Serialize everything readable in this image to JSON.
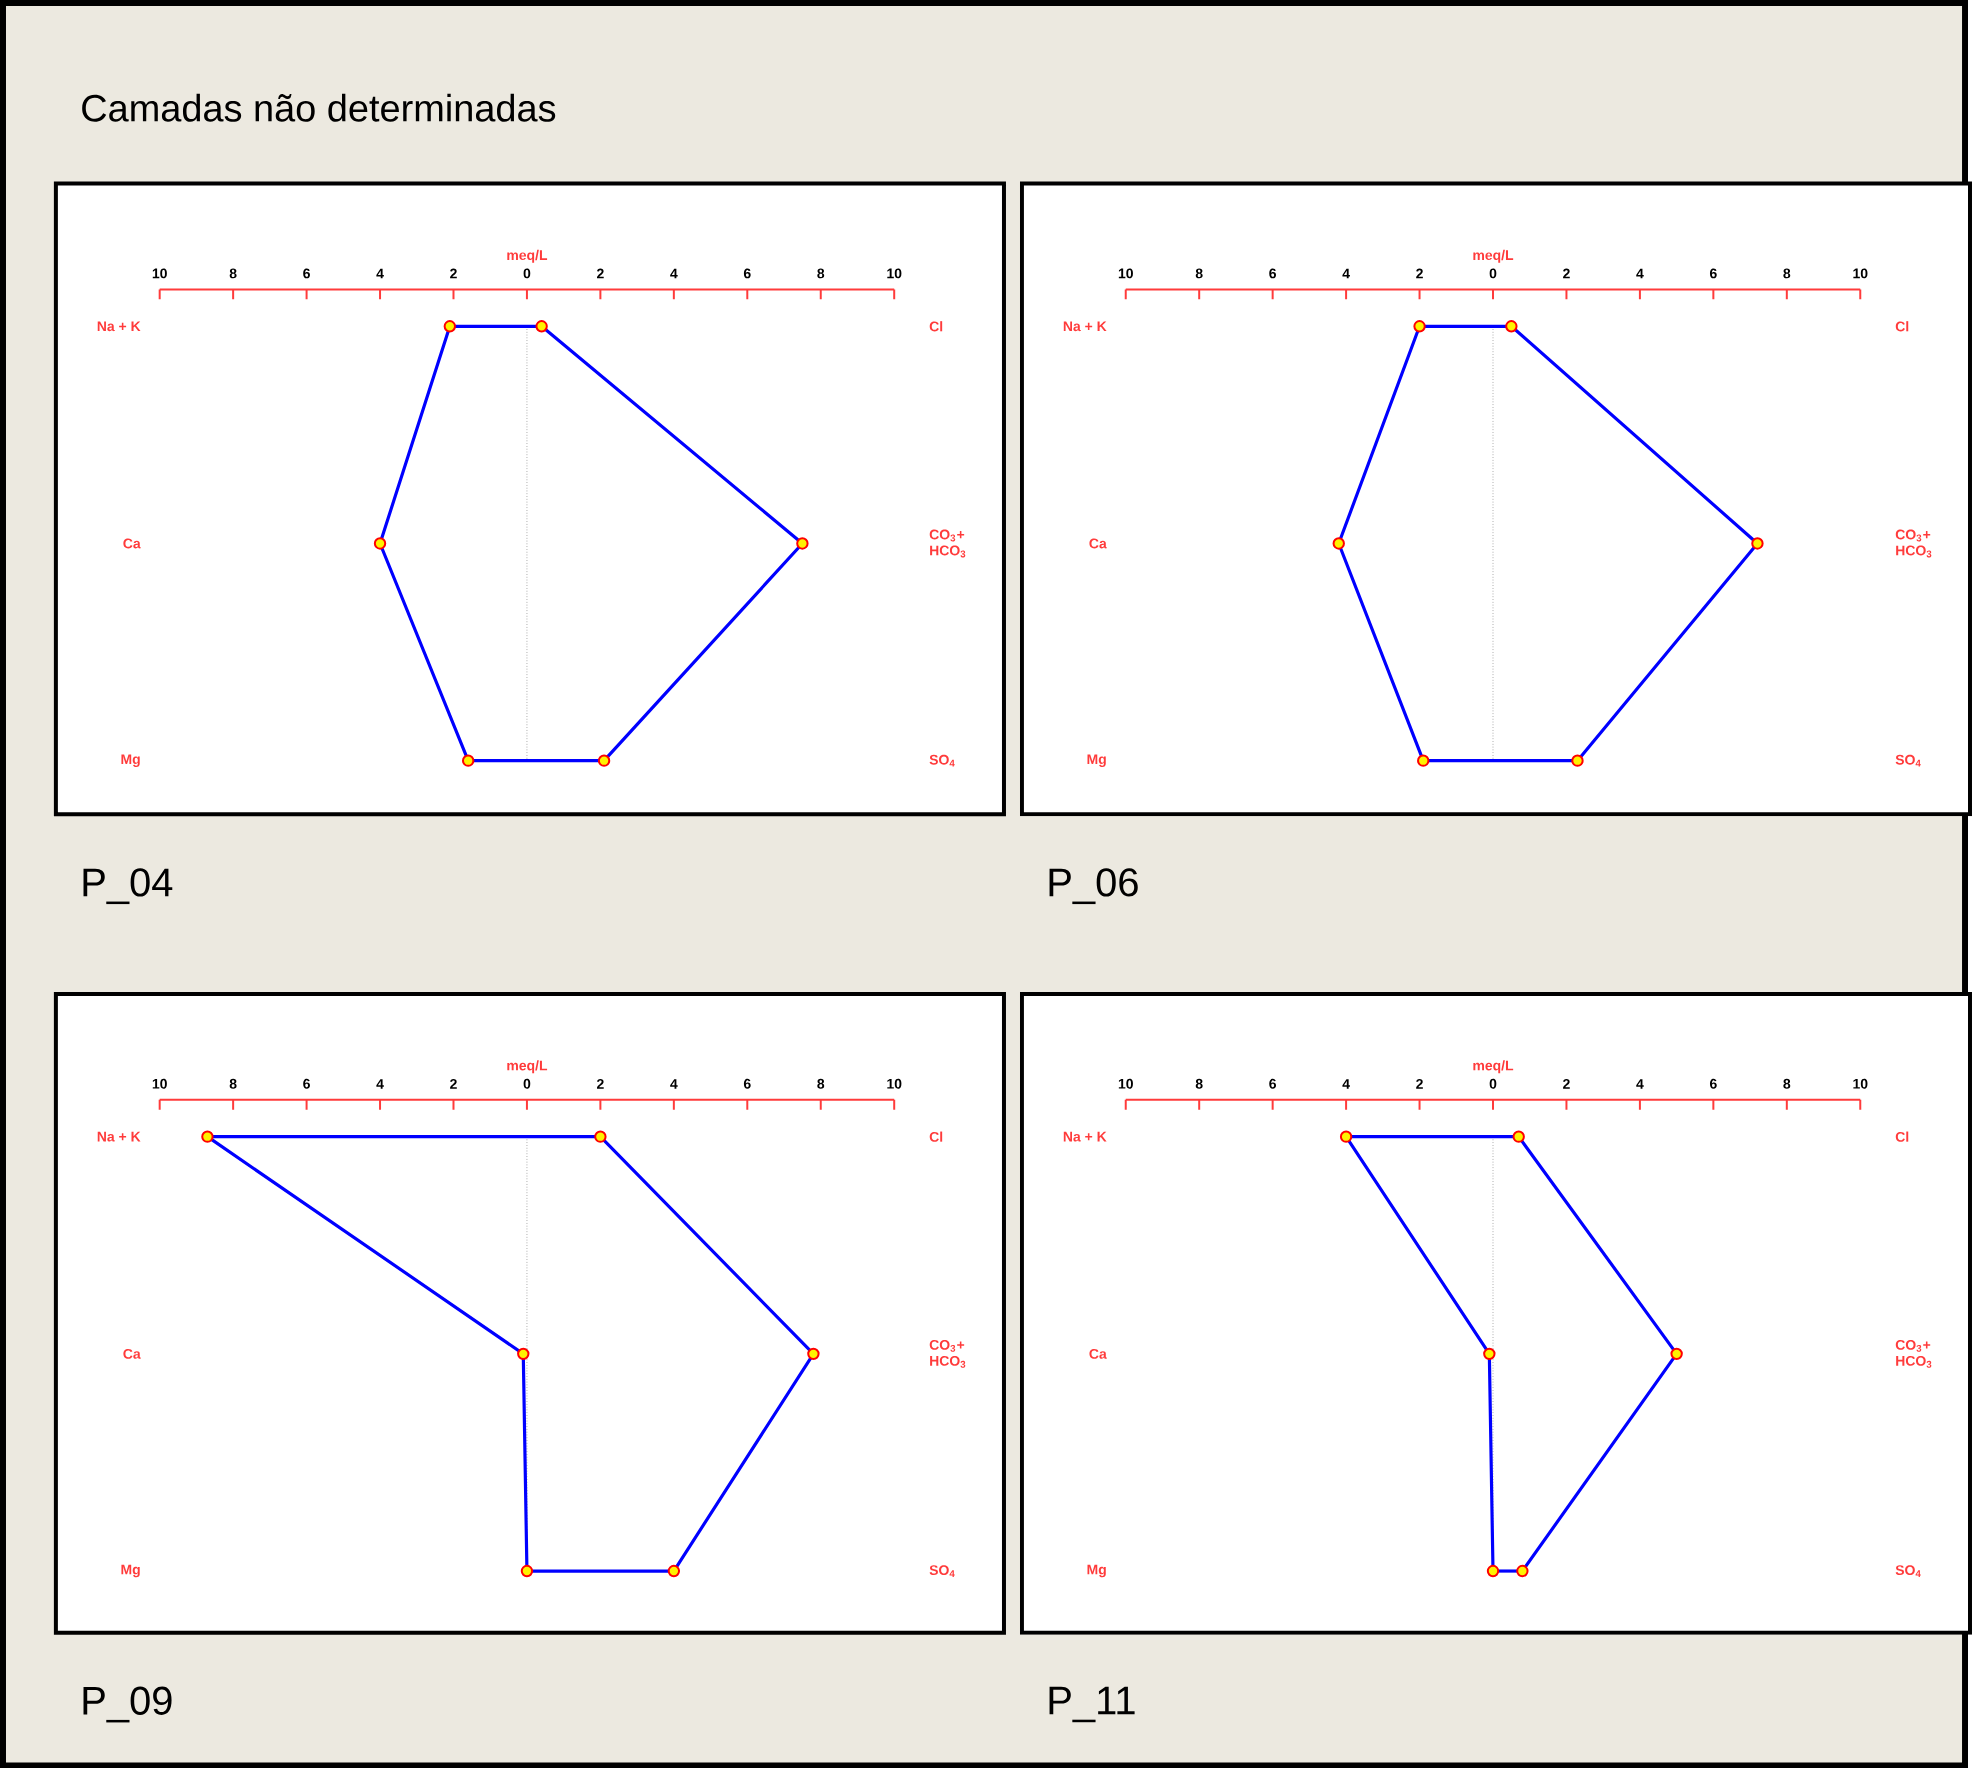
{
  "chart_data": [
    {
      "type": "line",
      "orientation": "horizontal",
      "title": "P_04",
      "xlabel": "meq/L",
      "marker": "circle",
      "xlim": [
        -10,
        10
      ],
      "xticks": [
        {
          "value": -10,
          "label": "10"
        },
        {
          "value": -8,
          "label": "8"
        },
        {
          "value": -6,
          "label": "6"
        },
        {
          "value": -4,
          "label": "4"
        },
        {
          "value": -2,
          "label": "2"
        },
        0,
        2,
        4,
        6,
        8,
        10
      ],
      "categories": [
        "Na + K",
        "Ca",
        "Mg"
      ],
      "annotations": [
        "Cl",
        "CO$_{3}$+ HCO$_{3}$",
        "SO$_{4}$",
        "Camadas não determinadas"
      ],
      "ref_lines": [
        {
          "axis": "x",
          "value": 0,
          "line_style": "dotted",
          "color": "#808080"
        }
      ],
      "series": [
        {
          "color": "#0000ff",
          "values": [
            -2.1,
            -4.0,
            -1.6
          ]
        },
        {
          "color": "#0000ff",
          "values": [
            0.4,
            7.5,
            2.1
          ]
        }
      ]
    },
    {
      "type": "line",
      "orientation": "horizontal",
      "title": "P_06",
      "xlabel": "meq/L",
      "marker": "circle",
      "xlim": [
        -10,
        10
      ],
      "xticks": [
        {
          "value": -10,
          "label": "10"
        },
        {
          "value": -8,
          "label": "8"
        },
        {
          "value": -6,
          "label": "6"
        },
        {
          "value": -4,
          "label": "4"
        },
        {
          "value": -2,
          "label": "2"
        },
        0,
        2,
        4,
        6,
        8,
        10
      ],
      "categories": [
        "Na + K",
        "Ca",
        "Mg"
      ],
      "annotations": [
        "Cl",
        "CO$_{3}$+ HCO$_{3}$",
        "SO$_{4}$"
      ],
      "ref_lines": [
        {
          "axis": "x",
          "value": 0,
          "line_style": "dotted",
          "color": "#808080"
        }
      ],
      "series": [
        {
          "color": "#0000ff",
          "values": [
            -2.0,
            -4.2,
            -1.9
          ]
        },
        {
          "color": "#0000ff",
          "values": [
            0.5,
            7.2,
            2.3
          ]
        }
      ]
    },
    {
      "type": "line",
      "orientation": "horizontal",
      "title": "P_09",
      "xlabel": "meq/L",
      "marker": "circle",
      "xlim": [
        -10,
        10
      ],
      "xticks": [
        {
          "value": -10,
          "label": "10"
        },
        {
          "value": -8,
          "label": "8"
        },
        {
          "value": -6,
          "label": "6"
        },
        {
          "value": -4,
          "label": "4"
        },
        {
          "value": -2,
          "label": "2"
        },
        0,
        2,
        4,
        6,
        8,
        10
      ],
      "categories": [
        "Na + K",
        "Ca",
        "Mg"
      ],
      "annotations": [
        "Cl",
        "CO$_{3}$+ HCO$_{3}$",
        "SO$_{4}$"
      ],
      "ref_lines": [
        {
          "axis": "x",
          "value": 0,
          "line_style": "dotted",
          "color": "#808080"
        }
      ],
      "series": [
        {
          "color": "#0000ff",
          "values": [
            -8.7,
            -0.1,
            0.0
          ]
        },
        {
          "color": "#0000ff",
          "values": [
            2.0,
            7.8,
            4.0
          ]
        }
      ]
    },
    {
      "type": "line",
      "orientation": "horizontal",
      "title": "P_11",
      "xlabel": "meq/L",
      "marker": "circle",
      "xlim": [
        -10,
        10
      ],
      "xticks": [
        {
          "value": -10,
          "label": "10"
        },
        {
          "value": -8,
          "label": "8"
        },
        {
          "value": -6,
          "label": "6"
        },
        {
          "value": -4,
          "label": "4"
        },
        {
          "value": -2,
          "label": "2"
        },
        0,
        2,
        4,
        6,
        8,
        10
      ],
      "categories": [
        "Na + K",
        "Ca",
        "Mg"
      ],
      "annotations": [
        "Cl",
        "CO$_{3}$+ HCO$_{3}$",
        "SO$_{4}$"
      ],
      "ref_lines": [
        {
          "axis": "x",
          "value": 0,
          "line_style": "dotted",
          "color": "#808080"
        }
      ],
      "series": [
        {
          "color": "#0000ff",
          "values": [
            -4.0,
            -0.1,
            0.0
          ]
        },
        {
          "color": "#0000ff",
          "values": [
            0.7,
            5.0,
            0.8
          ]
        }
      ]
    }
  ]
}
